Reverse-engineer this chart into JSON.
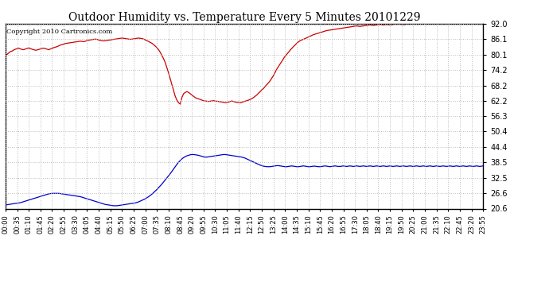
{
  "title": "Outdoor Humidity vs. Temperature Every 5 Minutes 20101229",
  "copyright": "Copyright 2010 Cartronics.com",
  "background_color": "#ffffff",
  "plot_bg_color": "#ffffff",
  "grid_color": "#bbbbbb",
  "red_color": "#cc0000",
  "blue_color": "#0000cc",
  "ylim": [
    20.6,
    92.0
  ],
  "yticks": [
    20.6,
    26.6,
    32.5,
    38.5,
    44.4,
    50.4,
    56.3,
    62.2,
    68.2,
    74.2,
    80.1,
    86.1,
    92.0
  ],
  "num_points": 288,
  "tick_interval": 7,
  "red_data": [
    79.8,
    80.2,
    80.8,
    81.3,
    81.5,
    81.9,
    82.2,
    82.4,
    82.6,
    82.3,
    82.1,
    82.0,
    82.3,
    82.5,
    82.7,
    82.4,
    82.2,
    82.0,
    81.8,
    81.9,
    82.1,
    82.3,
    82.5,
    82.6,
    82.4,
    82.2,
    82.0,
    82.3,
    82.5,
    82.8,
    83.0,
    83.2,
    83.5,
    83.8,
    84.0,
    84.2,
    84.4,
    84.5,
    84.6,
    84.7,
    84.8,
    84.9,
    85.0,
    85.1,
    85.2,
    85.3,
    85.2,
    85.1,
    85.3,
    85.5,
    85.7,
    85.8,
    85.9,
    86.0,
    86.1,
    86.0,
    85.8,
    85.6,
    85.5,
    85.4,
    85.5,
    85.6,
    85.7,
    85.8,
    85.9,
    86.0,
    86.1,
    86.2,
    86.3,
    86.4,
    86.5,
    86.4,
    86.3,
    86.2,
    86.1,
    86.0,
    86.1,
    86.2,
    86.3,
    86.4,
    86.5,
    86.4,
    86.3,
    86.1,
    85.8,
    85.5,
    85.2,
    84.8,
    84.5,
    84.0,
    83.4,
    82.8,
    82.0,
    81.0,
    79.8,
    78.5,
    77.0,
    75.0,
    73.0,
    70.8,
    68.5,
    66.2,
    64.0,
    62.5,
    61.5,
    61.0,
    63.5,
    65.0,
    65.5,
    65.8,
    65.5,
    65.0,
    64.5,
    64.0,
    63.5,
    63.2,
    63.0,
    62.8,
    62.5,
    62.3,
    62.2,
    62.1,
    62.0,
    62.1,
    62.2,
    62.3,
    62.2,
    62.1,
    62.0,
    61.9,
    61.8,
    61.7,
    61.6,
    61.5,
    61.8,
    62.0,
    62.2,
    62.0,
    61.8,
    61.7,
    61.6,
    61.5,
    61.7,
    61.9,
    62.1,
    62.3,
    62.5,
    62.8,
    63.1,
    63.5,
    64.0,
    64.5,
    65.2,
    65.8,
    66.5,
    67.0,
    67.8,
    68.5,
    69.2,
    70.0,
    71.0,
    72.0,
    73.2,
    74.5,
    75.5,
    76.5,
    77.5,
    78.5,
    79.5,
    80.2,
    81.0,
    81.8,
    82.5,
    83.2,
    83.8,
    84.5,
    85.0,
    85.5,
    85.8,
    86.0,
    86.3,
    86.6,
    86.9,
    87.2,
    87.5,
    87.8,
    88.0,
    88.2,
    88.4,
    88.6,
    88.8,
    89.0,
    89.2,
    89.4,
    89.5,
    89.6,
    89.7,
    89.8,
    89.9,
    90.0,
    90.1,
    90.2,
    90.3,
    90.4,
    90.5,
    90.6,
    90.7,
    90.8,
    90.9,
    91.0,
    91.1,
    91.2,
    91.1,
    91.0,
    91.1,
    91.2,
    91.3,
    91.4,
    91.5,
    91.6,
    91.5,
    91.4,
    91.5,
    91.6,
    91.7,
    91.8,
    91.7,
    91.6,
    91.7,
    91.8,
    91.7,
    91.6,
    91.7,
    91.8,
    91.9,
    92.0,
    92.1,
    91.9,
    91.8,
    91.7,
    91.8,
    91.9,
    92.0,
    92.1,
    92.0,
    91.9,
    92.0,
    92.1,
    92.2,
    92.3,
    92.2,
    92.1,
    92.2,
    92.3,
    92.2,
    92.1,
    92.2,
    92.3,
    92.2,
    92.3,
    92.2,
    92.3,
    92.4,
    92.3,
    92.2,
    92.3,
    92.4,
    92.3,
    92.4,
    92.5,
    92.4,
    92.3,
    92.4,
    92.5,
    92.4,
    92.5,
    92.4,
    92.5,
    92.4,
    92.5,
    92.4,
    92.5,
    92.4,
    92.5,
    92.6,
    92.5,
    92.6,
    92.5
  ],
  "blue_data": [
    22.0,
    22.1,
    22.2,
    22.3,
    22.4,
    22.5,
    22.6,
    22.7,
    22.8,
    22.9,
    23.1,
    23.3,
    23.5,
    23.7,
    23.9,
    24.1,
    24.3,
    24.5,
    24.7,
    24.9,
    25.1,
    25.3,
    25.5,
    25.7,
    25.9,
    26.1,
    26.3,
    26.4,
    26.5,
    26.5,
    26.5,
    26.5,
    26.5,
    26.4,
    26.3,
    26.2,
    26.1,
    26.0,
    25.9,
    25.8,
    25.7,
    25.6,
    25.5,
    25.4,
    25.3,
    25.2,
    25.0,
    24.8,
    24.6,
    24.4,
    24.2,
    24.0,
    23.8,
    23.6,
    23.4,
    23.2,
    23.0,
    22.8,
    22.6,
    22.4,
    22.2,
    22.1,
    22.0,
    21.9,
    21.8,
    21.7,
    21.7,
    21.7,
    21.8,
    21.9,
    22.0,
    22.1,
    22.2,
    22.3,
    22.4,
    22.5,
    22.6,
    22.7,
    22.8,
    23.0,
    23.2,
    23.5,
    23.8,
    24.1,
    24.4,
    24.8,
    25.2,
    25.7,
    26.2,
    26.8,
    27.4,
    28.0,
    28.7,
    29.4,
    30.1,
    30.9,
    31.7,
    32.5,
    33.3,
    34.1,
    35.0,
    35.9,
    36.8,
    37.7,
    38.5,
    39.2,
    39.8,
    40.3,
    40.7,
    41.0,
    41.2,
    41.4,
    41.5,
    41.5,
    41.4,
    41.3,
    41.2,
    41.0,
    40.8,
    40.6,
    40.5,
    40.5,
    40.6,
    40.7,
    40.8,
    40.9,
    41.0,
    41.1,
    41.2,
    41.3,
    41.4,
    41.5,
    41.5,
    41.4,
    41.3,
    41.2,
    41.1,
    41.0,
    40.9,
    40.8,
    40.7,
    40.6,
    40.5,
    40.3,
    40.1,
    39.8,
    39.5,
    39.2,
    38.9,
    38.6,
    38.3,
    38.0,
    37.7,
    37.4,
    37.2,
    37.0,
    36.9,
    36.8,
    36.8,
    36.8,
    36.9,
    37.0,
    37.1,
    37.2,
    37.2,
    37.1,
    37.0,
    36.9,
    36.8,
    36.8,
    36.9,
    37.0,
    37.1,
    37.0,
    36.9,
    36.8,
    36.8,
    36.9,
    37.0,
    37.1,
    37.0,
    36.9,
    36.8,
    36.8,
    36.9,
    37.0,
    37.0,
    36.9,
    36.8,
    36.8,
    36.9,
    37.0,
    37.1,
    37.0,
    36.9,
    36.8,
    36.9,
    37.0,
    37.1,
    37.0,
    36.9,
    36.9,
    37.0,
    37.1,
    37.0,
    36.9,
    37.0,
    37.1,
    37.0,
    36.9,
    37.0,
    37.1,
    37.0,
    36.9,
    37.0,
    37.1,
    37.0,
    36.9,
    37.0,
    37.1,
    37.0,
    36.9,
    37.0,
    37.1,
    37.0,
    36.9,
    37.0,
    37.1,
    37.0,
    36.9,
    37.0,
    37.1,
    37.0,
    36.9,
    37.0,
    37.1,
    37.0,
    36.9,
    37.0,
    37.1,
    37.0,
    36.9,
    37.0,
    37.1,
    37.0,
    36.9,
    37.0,
    37.1,
    37.0,
    36.9,
    37.0,
    37.1,
    37.0,
    36.9,
    37.0,
    37.1,
    37.0,
    36.9,
    37.0,
    37.1,
    37.0,
    36.9,
    37.0,
    37.1,
    37.0,
    36.9,
    37.0,
    37.1,
    37.0,
    36.9,
    37.0,
    37.1,
    37.0,
    36.9,
    37.0,
    37.1,
    37.0,
    36.9,
    37.0,
    37.1,
    37.0,
    36.9,
    37.0,
    37.1,
    37.0,
    36.9,
    37.0,
    37.1,
    37.0,
    37.0
  ]
}
